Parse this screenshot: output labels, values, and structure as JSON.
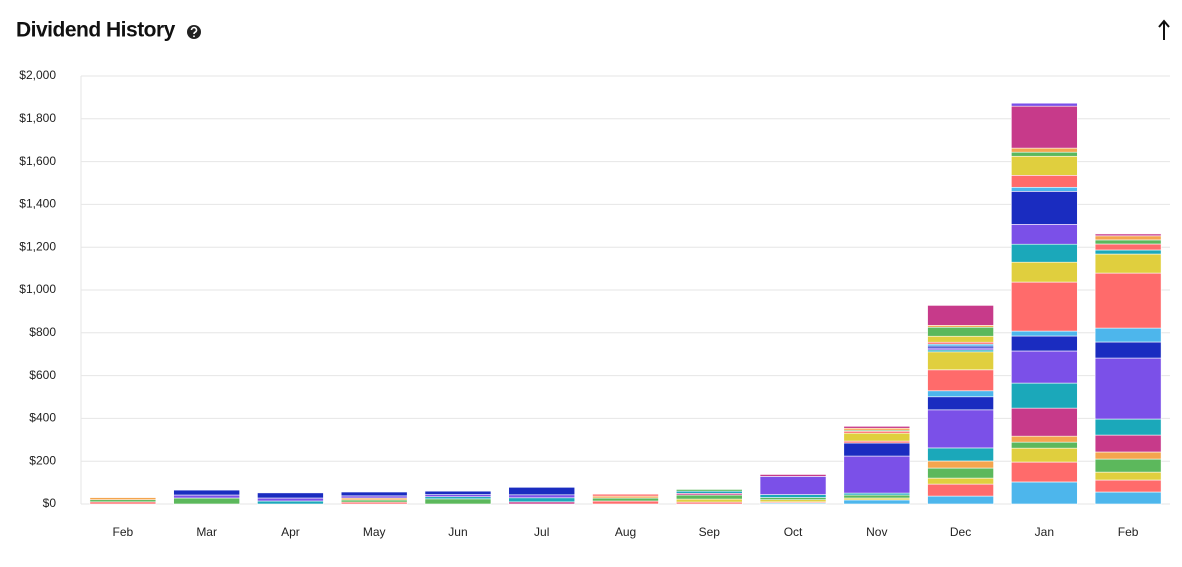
{
  "chart_data": {
    "type": "stacked_bar",
    "title": "Dividend History",
    "categories": [
      "Feb",
      "Mar",
      "Apr",
      "May",
      "Jun",
      "Jul",
      "Aug",
      "Sep",
      "Oct",
      "Nov",
      "Dec",
      "Jan",
      "Feb"
    ],
    "ylim": [
      0,
      2000
    ],
    "yticks": [
      {
        "value": 0,
        "label": "$0"
      },
      {
        "value": 200,
        "label": "$200"
      },
      {
        "value": 400,
        "label": "$400"
      },
      {
        "value": 600,
        "label": "$600"
      },
      {
        "value": 800,
        "label": "$800"
      },
      {
        "value": 1000,
        "label": "$1,000"
      },
      {
        "value": 1200,
        "label": "$1,200"
      },
      {
        "value": 1400,
        "label": "$1,400"
      },
      {
        "value": 1600,
        "label": "$1,600"
      },
      {
        "value": 1800,
        "label": "$1,800"
      },
      {
        "value": 2000,
        "label": "$2,000"
      }
    ],
    "grid": true,
    "series": [
      {
        "color": "#4db6ec",
        "values": [
          0,
          0,
          0,
          0,
          0,
          0,
          0,
          0,
          5,
          19,
          37,
          103,
          56
        ]
      },
      {
        "color": "#ff6b6b",
        "values": [
          10,
          0,
          0,
          9,
          0,
          0,
          14,
          9,
          5,
          0,
          56,
          93,
          56
        ]
      },
      {
        "color": "#e0cf3e",
        "values": [
          0,
          0,
          0,
          0,
          0,
          0,
          0,
          14,
          10,
          9,
          28,
          65,
          37
        ]
      },
      {
        "color": "#5cb85c",
        "values": [
          10,
          28,
          0,
          10,
          24,
          0,
          14,
          19,
          10,
          14,
          47,
          28,
          61
        ]
      },
      {
        "color": "#f4a54e",
        "values": [
          10,
          0,
          0,
          9,
          0,
          0,
          9,
          0,
          0,
          0,
          33,
          28,
          33
        ]
      },
      {
        "color": "#c73a8a",
        "values": [
          0,
          0,
          0,
          0,
          0,
          10,
          0,
          8,
          0,
          0,
          0,
          131,
          79
        ]
      },
      {
        "color": "#1ba8ba",
        "values": [
          0,
          0,
          14,
          0,
          10,
          19,
          0,
          10,
          14,
          9,
          61,
          117,
          75
        ]
      },
      {
        "color": "#7b50e8",
        "values": [
          0,
          14,
          14,
          10,
          10,
          14,
          0,
          0,
          85,
          173,
          178,
          150,
          285
        ]
      },
      {
        "color": "#1a2cc0",
        "values": [
          0,
          23,
          24,
          18,
          16,
          35,
          0,
          0,
          0,
          61,
          61,
          70,
          75
        ]
      },
      {
        "color": "#4db6ec",
        "values": [
          0,
          0,
          0,
          0,
          0,
          0,
          0,
          0,
          0,
          0,
          28,
          23,
          65
        ]
      },
      {
        "color": "#ff6b6b",
        "values": [
          0,
          0,
          0,
          0,
          0,
          0,
          9,
          0,
          0,
          9,
          98,
          229,
          257
        ]
      },
      {
        "color": "#e0cf3e",
        "values": [
          0,
          0,
          0,
          0,
          0,
          0,
          0,
          0,
          0,
          37,
          84,
          93,
          89
        ]
      },
      {
        "color": "#1ba8ba",
        "values": [
          0,
          0,
          0,
          0,
          0,
          0,
          0,
          0,
          0,
          0,
          9,
          84,
          19
        ]
      },
      {
        "color": "#7b50e8",
        "values": [
          0,
          0,
          0,
          0,
          0,
          0,
          0,
          0,
          0,
          0,
          9,
          93,
          0
        ]
      },
      {
        "color": "#1a2cc0",
        "values": [
          0,
          0,
          0,
          0,
          0,
          0,
          0,
          0,
          0,
          0,
          9,
          154,
          0
        ]
      },
      {
        "color": "#4db6ec",
        "values": [
          0,
          0,
          0,
          0,
          0,
          0,
          0,
          0,
          0,
          0,
          9,
          19,
          0
        ]
      },
      {
        "color": "#ff6b6b",
        "values": [
          0,
          0,
          0,
          0,
          0,
          0,
          0,
          0,
          0,
          9,
          9,
          56,
          28
        ]
      },
      {
        "color": "#e0cf3e",
        "values": [
          0,
          0,
          0,
          0,
          0,
          0,
          0,
          0,
          0,
          0,
          28,
          89,
          0
        ]
      },
      {
        "color": "#5cb85c",
        "values": [
          0,
          0,
          0,
          0,
          0,
          0,
          0,
          8,
          0,
          5,
          42,
          19,
          19
        ]
      },
      {
        "color": "#f4a54e",
        "values": [
          0,
          0,
          0,
          0,
          0,
          0,
          0,
          0,
          0,
          9,
          9,
          19,
          19
        ]
      },
      {
        "color": "#c73a8a",
        "values": [
          0,
          0,
          0,
          0,
          0,
          0,
          0,
          0,
          9,
          9,
          93,
          196,
          9
        ]
      },
      {
        "color": "#7b50e8",
        "values": [
          0,
          0,
          0,
          0,
          0,
          0,
          0,
          0,
          0,
          0,
          0,
          14,
          0
        ]
      }
    ]
  }
}
